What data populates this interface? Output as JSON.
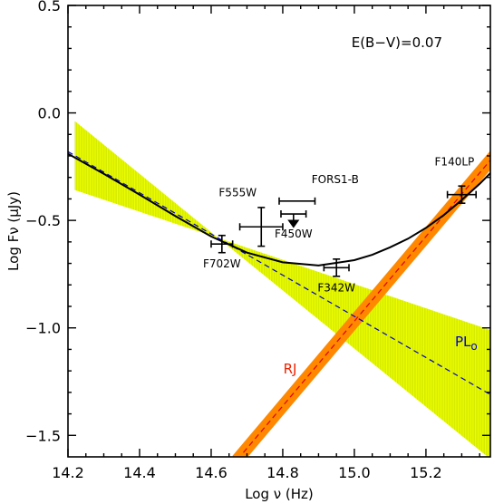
{
  "chart_data": {
    "type": "scatter",
    "title": "",
    "xlabel": "Log ν (Hz)",
    "ylabel": "Log Fν (μJy)",
    "xlim": [
      14.2,
      15.38
    ],
    "ylim": [
      -1.6,
      0.5
    ],
    "xticks": [
      "14.2",
      "14.4",
      "14.6",
      "14.8",
      "15.0",
      "15.2"
    ],
    "xtick_values": [
      14.2,
      14.4,
      14.6,
      14.8,
      15.0,
      15.2
    ],
    "yticks": [
      "0.5",
      "0.0",
      "−0.5",
      "−1.0",
      "−1.5"
    ],
    "ytick_values": [
      0.5,
      0.0,
      -0.5,
      -1.0,
      -1.5
    ],
    "annotation": "E(B−V)=0.07",
    "points": [
      {
        "name": "F702W",
        "x": 14.63,
        "y": -0.61,
        "xerr": 0.03,
        "yerr": 0.04,
        "label_pos": "below"
      },
      {
        "name": "F555W",
        "x": 14.74,
        "y": -0.53,
        "xerr": 0.06,
        "yerr": 0.09,
        "label_pos": "above-left"
      },
      {
        "name": "F450W",
        "x": 14.83,
        "y": -0.47,
        "xerr": 0.035,
        "yerr": 0.0,
        "upper_limit": true,
        "label_pos": "below"
      },
      {
        "name": "FORS1-B",
        "x": 14.84,
        "y": -0.41,
        "xerr": 0.05,
        "yerr": 0.0,
        "label_pos": "above-right"
      },
      {
        "name": "F342W",
        "x": 14.95,
        "y": -0.72,
        "xerr": 0.035,
        "yerr": 0.04,
        "label_pos": "below"
      },
      {
        "name": "F140LP",
        "x": 15.3,
        "y": -0.38,
        "xerr": 0.04,
        "yerr": 0.04,
        "label_pos": "above"
      }
    ],
    "series": [
      {
        "name": "PLo",
        "label": "PL",
        "label_sub": "o",
        "color": "#0000cc",
        "style": "dashed",
        "x": [
          14.2,
          15.38
        ],
        "y": [
          -0.18,
          -1.31
        ],
        "band_color": "#eeff00",
        "band_halfwidth_at_x": [
          [
            14.22,
            0.16
          ],
          [
            14.62,
            0.0
          ],
          [
            15.38,
            0.3
          ]
        ]
      },
      {
        "name": "RJ",
        "label": "RJ",
        "color": "#dd0000",
        "style": "dashed",
        "x": [
          14.69,
          15.38
        ],
        "y": [
          -1.58,
          -0.22
        ],
        "band_color": "#ff8800",
        "band_halfwidth": 0.045
      },
      {
        "name": "total",
        "color": "#000000",
        "style": "solid",
        "x": [
          14.2,
          14.3,
          14.4,
          14.5,
          14.6,
          14.7,
          14.8,
          14.9,
          15.0,
          15.05,
          15.1,
          15.15,
          15.2,
          15.25,
          15.3,
          15.35,
          15.38
        ],
        "y": [
          -0.19,
          -0.283,
          -0.38,
          -0.48,
          -0.575,
          -0.65,
          -0.695,
          -0.71,
          -0.685,
          -0.66,
          -0.625,
          -0.585,
          -0.535,
          -0.475,
          -0.405,
          -0.33,
          -0.28
        ]
      }
    ],
    "label_colors": {
      "RJ": "#ee2200",
      "PLo": "#0000cc"
    }
  }
}
